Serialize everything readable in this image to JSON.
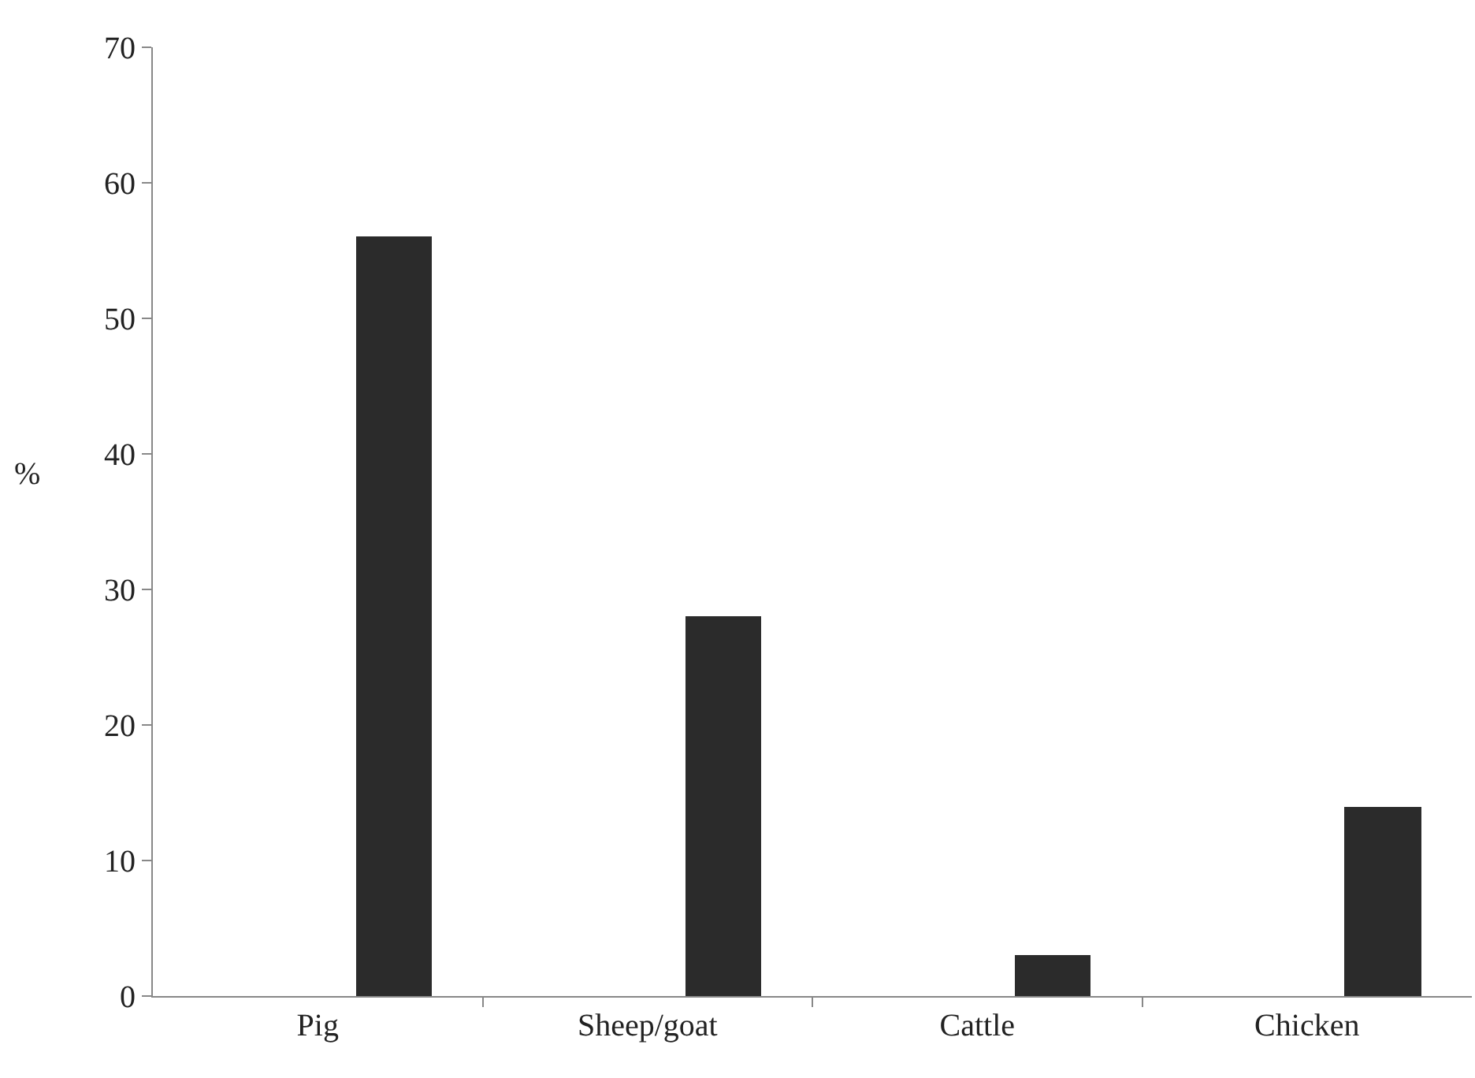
{
  "chart_data": {
    "type": "bar",
    "ylabel": "%",
    "categories": [
      "Pig",
      "Sheep/goat",
      "Cattle",
      "Chicken"
    ],
    "values": [
      56,
      28,
      3,
      14
    ],
    "color": "#2b2b2b",
    "ylim": [
      0,
      70
    ],
    "yticks": [
      0,
      10,
      20,
      30,
      40,
      50,
      60,
      70
    ],
    "legend": false
  }
}
